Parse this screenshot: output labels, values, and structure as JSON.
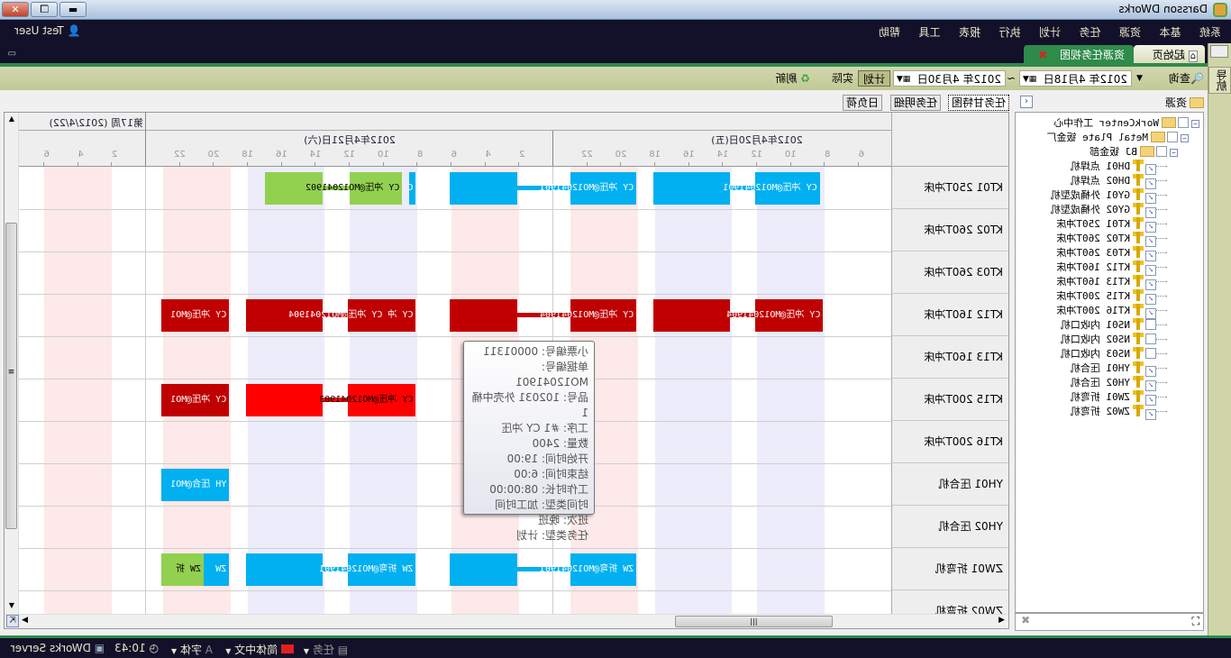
{
  "window": {
    "title": "Darsson DWorks",
    "controls": [
      "minimize",
      "restore",
      "close"
    ]
  },
  "menu": [
    "系统",
    "基本",
    "资源",
    "任务",
    "计划",
    "执行",
    "报表",
    "工具",
    "帮助"
  ],
  "user": {
    "name": "Test User",
    "icon": "user-icon"
  },
  "tabs": [
    {
      "label": "起始页",
      "icon": "home-icon",
      "active": false
    },
    {
      "label": "资源任务视图",
      "active": true,
      "closable": true
    }
  ],
  "toolbar": {
    "query": "查询",
    "date_from": "2012年 4月18日",
    "separator": "~",
    "date_to": "2012年 4月30日",
    "plan": "计划",
    "actual": "实际",
    "refresh": "刷新"
  },
  "nav": {
    "label": "导航"
  },
  "resource_panel": {
    "title": "资源",
    "tree": [
      {
        "level": 0,
        "label": "WorkCenter 工作中心",
        "type": "folder",
        "expander": "−",
        "checked": false
      },
      {
        "level": 1,
        "label": "Metal Plate 钣金厂",
        "type": "folder",
        "expander": "−",
        "checked": false
      },
      {
        "level": 2,
        "label": "BJ 钣金部",
        "type": "folder",
        "expander": "−",
        "checked": false
      },
      {
        "level": 3,
        "label": "DH01 点焊机",
        "type": "machine",
        "checked": true
      },
      {
        "level": 3,
        "label": "DH02 点焊机",
        "type": "machine",
        "checked": true
      },
      {
        "level": 3,
        "label": "GY01 外桶成型机",
        "type": "machine",
        "checked": true
      },
      {
        "level": 3,
        "label": "GY02 外桶成型机",
        "type": "machine",
        "checked": true
      },
      {
        "level": 3,
        "label": "KT01 250T冲床",
        "type": "machine",
        "checked": true
      },
      {
        "level": 3,
        "label": "KT02 260T冲床",
        "type": "machine",
        "checked": true
      },
      {
        "level": 3,
        "label": "KT03 260T冲床",
        "type": "machine",
        "checked": true
      },
      {
        "level": 3,
        "label": "KT12 160T冲床",
        "type": "machine",
        "checked": true
      },
      {
        "level": 3,
        "label": "KT13 160T冲床",
        "type": "machine",
        "checked": true
      },
      {
        "level": 3,
        "label": "KT15 200T冲床",
        "type": "machine",
        "checked": true
      },
      {
        "level": 3,
        "label": "KT16 200T冲床",
        "type": "machine",
        "checked": true
      },
      {
        "level": 3,
        "label": "NS01 内收口机",
        "type": "machine",
        "checked": false
      },
      {
        "level": 3,
        "label": "NS02 内收口机",
        "type": "machine",
        "checked": false
      },
      {
        "level": 3,
        "label": "NS03 内收口机",
        "type": "machine",
        "checked": false
      },
      {
        "level": 3,
        "label": "YH01 压合机",
        "type": "machine",
        "checked": true
      },
      {
        "level": 3,
        "label": "YH02 压合机",
        "type": "machine",
        "checked": true
      },
      {
        "level": 3,
        "label": "ZW01 折弯机",
        "type": "machine",
        "checked": true
      },
      {
        "level": 3,
        "label": "ZW02 折弯机",
        "type": "machine",
        "checked": true
      }
    ]
  },
  "gantt": {
    "subtabs": [
      "任务甘特图",
      "任务明细",
      "日负荷"
    ],
    "week_label": "第17周 (2012/4/22)",
    "days": [
      {
        "label": "2012年4月20日(五)",
        "day": 20
      },
      {
        "label": "2012年4月21日(六)",
        "day": 21
      },
      {
        "label": "",
        "day": 22
      }
    ],
    "colors": {
      "plan_blue": "#00b0f0",
      "green": "#92d050",
      "dark_red": "#c00000",
      "red": "#ff0000",
      "day_shift": "#ececfb",
      "night_shift": "#fde9e9"
    },
    "shifts": {
      "day": [
        [
          8,
          12
        ],
        [
          13.5,
          18
        ]
      ],
      "night": [
        [
          19,
          23
        ],
        [
          26,
          30
        ]
      ]
    },
    "rows": [
      {
        "label": "KT01 250T冲床",
        "bars": [
          {
            "pieces": [
              [
                20,
                8.3,
                12.1
              ],
              [
                20,
                13.6,
                18.1
              ]
            ],
            "text": "CY 冲压@MO12041901",
            "color": "plan_blue"
          },
          {
            "pieces": [
              [
                20,
                19.1,
                23.0
              ],
              [
                21,
                2.1,
                6.1
              ]
            ],
            "text": "CY 冲压@MO12041901",
            "color": "plan_blue"
          },
          {
            "pieces": [
              [
                21,
                8.1,
                8.5
              ]
            ],
            "text": "C",
            "color": "plan_blue"
          },
          {
            "pieces": [
              [
                21,
                8.9,
                12.0
              ],
              [
                21,
                13.6,
                17.0
              ]
            ],
            "text": "CY 冲压@MO12041902",
            "color": "green"
          }
        ]
      },
      {
        "label": "KT02 260T冲床",
        "bars": []
      },
      {
        "label": "KT03 260T冲床",
        "bars": []
      },
      {
        "label": "KT12 160T冲床",
        "bars": [
          {
            "pieces": [
              [
                20,
                8.1,
                12.1
              ],
              [
                20,
                13.6,
                18.1
              ]
            ],
            "text": "CY 冲压@MO12041904",
            "color": "dark_red"
          },
          {
            "pieces": [
              [
                20,
                19.1,
                23.0
              ],
              [
                21,
                2.1,
                6.1
              ]
            ],
            "text": "CY 冲压@MO12041904",
            "color": "dark_red"
          },
          {
            "pieces": [
              [
                21,
                8.1,
                12.1
              ],
              [
                21,
                13.6,
                18.1
              ]
            ],
            "text": "CY 冲 CY 冲压@MO12041904",
            "color": "dark_red"
          },
          {
            "pieces": [
              [
                21,
                19.1,
                23.1
              ]
            ],
            "text": "CY 冲压@MO1",
            "color": "dark_red"
          }
        ]
      },
      {
        "label": "KT13 160T冲床",
        "bars": []
      },
      {
        "label": "KT15 200T冲床",
        "bars": [
          {
            "pieces": [
              [
                21,
                8.1,
                12.1
              ],
              [
                21,
                13.6,
                18.1
              ]
            ],
            "text": "CY 冲压@MO12041903",
            "color": "red"
          },
          {
            "pieces": [
              [
                21,
                19.1,
                23.1
              ]
            ],
            "text": "CY 冲压@MO1",
            "color": "dark_red"
          }
        ]
      },
      {
        "label": "KT16 200T冲床",
        "bars": []
      },
      {
        "label": "YH01 压合机",
        "bars": [
          {
            "pieces": [
              [
                21,
                19.1,
                23.1
              ]
            ],
            "text": "YH 压合@MO1",
            "color": "plan_blue"
          }
        ]
      },
      {
        "label": "YH02 压合机",
        "bars": []
      },
      {
        "label": "ZW01 折弯机",
        "bars": [
          {
            "pieces": [
              [
                20,
                19.1,
                23.0
              ],
              [
                21,
                2.1,
                6.1
              ]
            ],
            "text": "ZW 折弯@MO12041901",
            "color": "plan_blue"
          },
          {
            "pieces": [
              [
                21,
                8.1,
                12.1
              ],
              [
                21,
                13.6,
                18.1
              ]
            ],
            "text": "ZW 折弯@MO12041901",
            "color": "plan_blue"
          },
          {
            "pieces": [
              [
                21,
                19.1,
                20.6
              ]
            ],
            "text": "ZW",
            "color": "plan_blue"
          },
          {
            "pieces": [
              [
                21,
                20.6,
                23.1
              ]
            ],
            "text": "ZW 折",
            "color": "green"
          }
        ]
      },
      {
        "label": "ZW02 折弯机",
        "bars": []
      }
    ]
  },
  "tooltip": [
    "小票编号: 00001311",
    "单据编号: MO12041901",
    "品号: 102031 外壳中桶1",
    "工序: #1  CY 冲压",
    "数量: 2400",
    "开始时间: 19:00",
    "结束时间: 6:00",
    "工作时长: 08:00:00",
    "时间类型: 加工时间",
    "班次: 晚班",
    "任务类型: 计划"
  ],
  "statusbar": {
    "tasks": "任务",
    "language": "简体中文",
    "font": "字体",
    "time": "10:43",
    "server": "DWorks Server"
  }
}
